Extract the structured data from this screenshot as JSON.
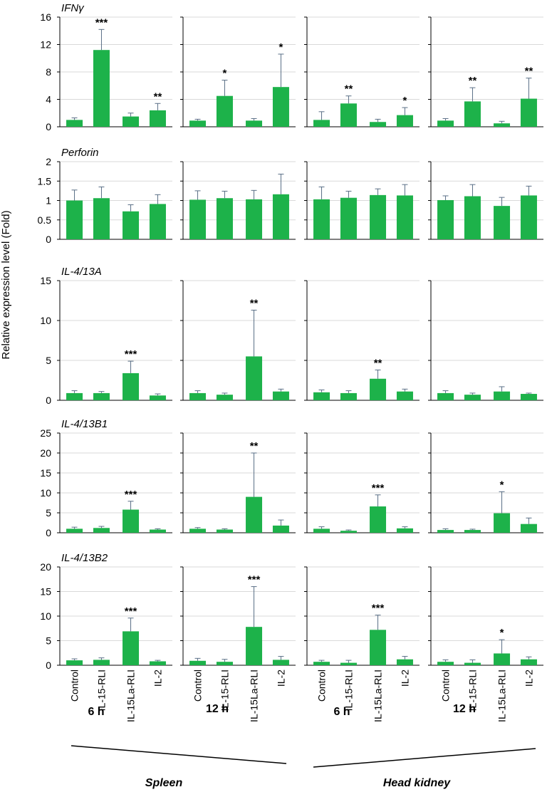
{
  "figure": {
    "ylabel": "Relative expression level (Fold)",
    "bar_color": "#1db24a",
    "grid_color": "#d9d9d9",
    "categories": [
      "Control",
      "IL-15-RLI",
      "IL-15La-RLI",
      "IL-2"
    ],
    "timepoints": [
      "6 h",
      "12 h",
      "6 h",
      "12 h"
    ],
    "tissues": [
      "Spleen",
      "Head kidney"
    ]
  },
  "chart_data": [
    {
      "type": "bar",
      "title": "IFNγ",
      "ylim": [
        0,
        16
      ],
      "yticks": [
        0,
        4,
        8,
        12,
        16
      ],
      "ytick_labels": [
        "0",
        "4",
        "8",
        "12",
        "16"
      ],
      "panels": [
        {
          "tissue": "Spleen",
          "time": "6 h",
          "values": [
            1.0,
            11.2,
            1.5,
            2.4
          ],
          "errors": [
            0.3,
            3.0,
            0.5,
            1.0
          ],
          "sig": [
            "",
            "***",
            "",
            "**"
          ]
        },
        {
          "tissue": "Spleen",
          "time": "12 h",
          "values": [
            0.9,
            4.5,
            0.9,
            5.8
          ],
          "errors": [
            0.2,
            2.3,
            0.3,
            4.8
          ],
          "sig": [
            "",
            "*",
            "",
            "*"
          ]
        },
        {
          "tissue": "Head kidney",
          "time": "6 h",
          "values": [
            1.0,
            3.4,
            0.7,
            1.7
          ],
          "errors": [
            1.2,
            1.1,
            0.4,
            1.1
          ],
          "sig": [
            "",
            "**",
            "",
            "*"
          ]
        },
        {
          "tissue": "Head kidney",
          "time": "12 h",
          "values": [
            0.9,
            3.7,
            0.5,
            4.1
          ],
          "errors": [
            0.3,
            2.0,
            0.3,
            3.0
          ],
          "sig": [
            "",
            "**",
            "",
            "**"
          ]
        }
      ]
    },
    {
      "type": "bar",
      "title": "Perforin",
      "ylim": [
        0,
        2
      ],
      "yticks": [
        0,
        0.5,
        1,
        1.5,
        2
      ],
      "ytick_labels": [
        "0",
        "0.5",
        "1",
        "1.5",
        "2"
      ],
      "panels": [
        {
          "tissue": "Spleen",
          "time": "6 h",
          "values": [
            1.0,
            1.06,
            0.72,
            0.91
          ],
          "errors": [
            0.27,
            0.29,
            0.17,
            0.24
          ],
          "sig": [
            "",
            "",
            "",
            ""
          ]
        },
        {
          "tissue": "Spleen",
          "time": "12 h",
          "values": [
            1.02,
            1.06,
            1.03,
            1.16
          ],
          "errors": [
            0.23,
            0.18,
            0.23,
            0.52
          ],
          "sig": [
            "",
            "",
            "",
            ""
          ]
        },
        {
          "tissue": "Head kidney",
          "time": "6 h",
          "values": [
            1.03,
            1.07,
            1.14,
            1.13
          ],
          "errors": [
            0.32,
            0.17,
            0.16,
            0.28
          ],
          "sig": [
            "",
            "",
            "",
            ""
          ]
        },
        {
          "tissue": "Head kidney",
          "time": "12 h",
          "values": [
            1.01,
            1.11,
            0.86,
            1.13
          ],
          "errors": [
            0.11,
            0.3,
            0.22,
            0.24
          ],
          "sig": [
            "",
            "",
            "",
            ""
          ]
        }
      ]
    },
    {
      "type": "bar",
      "title": "IL-4/13A",
      "ylim": [
        0,
        15
      ],
      "yticks": [
        0,
        5,
        10,
        15
      ],
      "ytick_labels": [
        "0",
        "5",
        "10",
        "15"
      ],
      "panels": [
        {
          "tissue": "Spleen",
          "time": "6 h",
          "values": [
            0.9,
            0.9,
            3.4,
            0.6
          ],
          "errors": [
            0.3,
            0.2,
            1.5,
            0.2
          ],
          "sig": [
            "",
            "",
            "***",
            ""
          ]
        },
        {
          "tissue": "Spleen",
          "time": "12 h",
          "values": [
            0.9,
            0.7,
            5.5,
            1.1
          ],
          "errors": [
            0.3,
            0.2,
            5.8,
            0.3
          ],
          "sig": [
            "",
            "",
            "**",
            ""
          ]
        },
        {
          "tissue": "Head kidney",
          "time": "6 h",
          "values": [
            1.0,
            0.9,
            2.7,
            1.1
          ],
          "errors": [
            0.3,
            0.3,
            1.1,
            0.3
          ],
          "sig": [
            "",
            "",
            "**",
            ""
          ]
        },
        {
          "tissue": "Head kidney",
          "time": "12 h",
          "values": [
            0.9,
            0.7,
            1.1,
            0.8
          ],
          "errors": [
            0.3,
            0.2,
            0.6,
            0.1
          ],
          "sig": [
            "",
            "",
            "",
            ""
          ]
        }
      ]
    },
    {
      "type": "bar",
      "title": "IL-4/13B1",
      "ylim": [
        0,
        25
      ],
      "yticks": [
        0,
        5,
        10,
        15,
        20,
        25
      ],
      "ytick_labels": [
        "0",
        "5",
        "10",
        "15",
        "20",
        "25"
      ],
      "panels": [
        {
          "tissue": "Spleen",
          "time": "6 h",
          "values": [
            1.0,
            1.2,
            5.8,
            0.8
          ],
          "errors": [
            0.4,
            0.4,
            2.1,
            0.2
          ],
          "sig": [
            "",
            "",
            "***",
            ""
          ]
        },
        {
          "tissue": "Spleen",
          "time": "12 h",
          "values": [
            1.0,
            0.8,
            9.0,
            1.8
          ],
          "errors": [
            0.3,
            0.2,
            11.0,
            1.4
          ],
          "sig": [
            "",
            "",
            "**",
            ""
          ]
        },
        {
          "tissue": "Head kidney",
          "time": "6 h",
          "values": [
            1.0,
            0.5,
            6.6,
            1.1
          ],
          "errors": [
            0.5,
            0.2,
            2.9,
            0.4
          ],
          "sig": [
            "",
            "",
            "***",
            ""
          ]
        },
        {
          "tissue": "Head kidney",
          "time": "12 h",
          "values": [
            0.7,
            0.7,
            4.9,
            2.2
          ],
          "errors": [
            0.3,
            0.2,
            5.4,
            1.5
          ],
          "sig": [
            "",
            "",
            "*",
            ""
          ]
        }
      ]
    },
    {
      "type": "bar",
      "title": "IL-4/13B2",
      "ylim": [
        0,
        20
      ],
      "yticks": [
        0,
        5,
        10,
        15,
        20
      ],
      "ytick_labels": [
        "0",
        "5",
        "10",
        "15",
        "20"
      ],
      "panels": [
        {
          "tissue": "Spleen",
          "time": "6 h",
          "values": [
            1.0,
            1.1,
            6.9,
            0.8
          ],
          "errors": [
            0.3,
            0.4,
            2.7,
            0.2
          ],
          "sig": [
            "",
            "",
            "***",
            ""
          ]
        },
        {
          "tissue": "Spleen",
          "time": "12 h",
          "values": [
            0.9,
            0.7,
            7.8,
            1.1
          ],
          "errors": [
            0.5,
            0.5,
            8.2,
            0.7
          ],
          "sig": [
            "",
            "",
            "***",
            ""
          ]
        },
        {
          "tissue": "Head kidney",
          "time": "6 h",
          "values": [
            0.7,
            0.5,
            7.2,
            1.2
          ],
          "errors": [
            0.3,
            0.5,
            3.0,
            0.6
          ],
          "sig": [
            "",
            "",
            "***",
            ""
          ]
        },
        {
          "tissue": "Head kidney",
          "time": "12 h",
          "values": [
            0.7,
            0.5,
            2.4,
            1.2
          ],
          "errors": [
            0.4,
            0.6,
            2.8,
            0.5
          ],
          "sig": [
            "",
            "",
            "*",
            ""
          ]
        }
      ]
    }
  ]
}
